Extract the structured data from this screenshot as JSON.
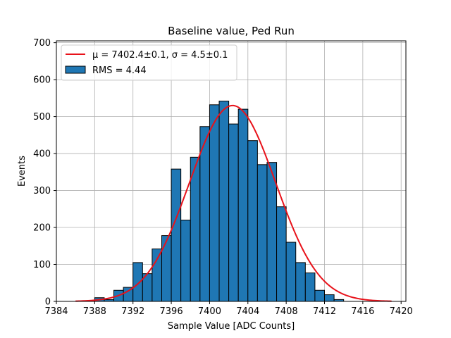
{
  "chart_data": {
    "type": "bar",
    "title": "Baseline value, Ped Run",
    "xlabel": "Sample Value [ADC Counts]",
    "ylabel": "Events",
    "xlim": [
      7384,
      7420.5
    ],
    "ylim": [
      0,
      705
    ],
    "xticks": [
      7384,
      7388,
      7392,
      7396,
      7400,
      7404,
      7408,
      7412,
      7416,
      7420
    ],
    "yticks": [
      0,
      100,
      200,
      300,
      400,
      500,
      600,
      700
    ],
    "grid": true,
    "legend_position": "top-left",
    "bin_width": 1,
    "bin_edges_start": 7387,
    "counts": [
      2,
      10,
      5,
      30,
      38,
      105,
      75,
      142,
      178,
      358,
      220,
      390,
      473,
      532,
      542,
      480,
      520,
      435,
      370,
      376,
      256,
      160,
      105,
      77,
      30,
      18,
      5,
      0
    ],
    "histogram_color": "#1f77b4",
    "fit": {
      "type": "gaussian",
      "mu": 7402.4,
      "sigma": 4.5,
      "amplitude": 530,
      "x_range": [
        7386,
        7419
      ],
      "color": "#e8121a"
    },
    "legend": [
      {
        "key": "fit",
        "label": "μ = 7402.4±0.1, σ = 4.5±0.1"
      },
      {
        "key": "hist",
        "label": "RMS = 4.44"
      }
    ]
  }
}
